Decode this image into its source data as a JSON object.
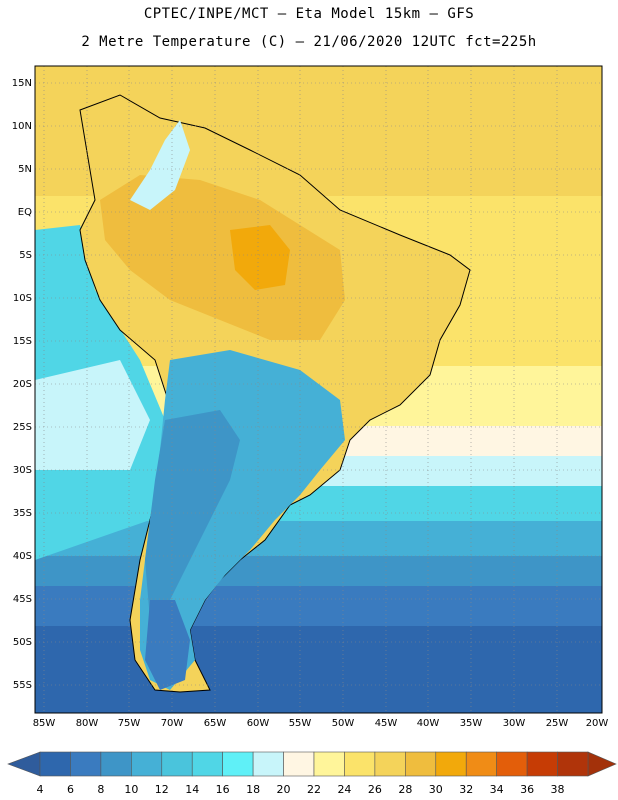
{
  "header": {
    "line1": "CPTEC/INPE/MCT –  Eta Model 15km – GFS",
    "line2": "2 Metre Temperature (C) – 21/06/2020 12UTC fct=225h"
  },
  "lat_labels": [
    "15N",
    "10N",
    "5N",
    "EQ",
    "5S",
    "10S",
    "15S",
    "20S",
    "25S",
    "30S",
    "35S",
    "40S",
    "45S",
    "50S",
    "55S"
  ],
  "lon_labels": [
    "85W",
    "80W",
    "75W",
    "70W",
    "65W",
    "60W",
    "55W",
    "50W",
    "45W",
    "40W",
    "35W",
    "30W",
    "25W",
    "20W"
  ],
  "colorbar": {
    "labels": [
      "4",
      "6",
      "8",
      "10",
      "12",
      "14",
      "16",
      "18",
      "20",
      "22",
      "24",
      "26",
      "28",
      "30",
      "32",
      "34",
      "36",
      "38"
    ],
    "colors": [
      "#2e67ad",
      "#3a7bbf",
      "#3e95c7",
      "#45b0d6",
      "#4ac4dc",
      "#50d6e6",
      "#5ff0f7",
      "#c8f5fa",
      "#fff6e3",
      "#fff59a",
      "#fbe36a",
      "#f4d35a",
      "#efbd3e",
      "#f2a90b",
      "#f08c16",
      "#e35e0a",
      "#c63c05",
      "#b0340a"
    ],
    "low_color": "#2f5c9c",
    "high_color": "#a3310a"
  },
  "map_colors": {
    "ocean_warm": "#fbe36a",
    "ocean_hot": "#f4d35a",
    "land_hot": "#efbd3e",
    "land_warm": "#f4d35a",
    "south_cold": "#2e67ad",
    "mid_cold": "#45b0d6",
    "cool": "#50d6e6"
  }
}
